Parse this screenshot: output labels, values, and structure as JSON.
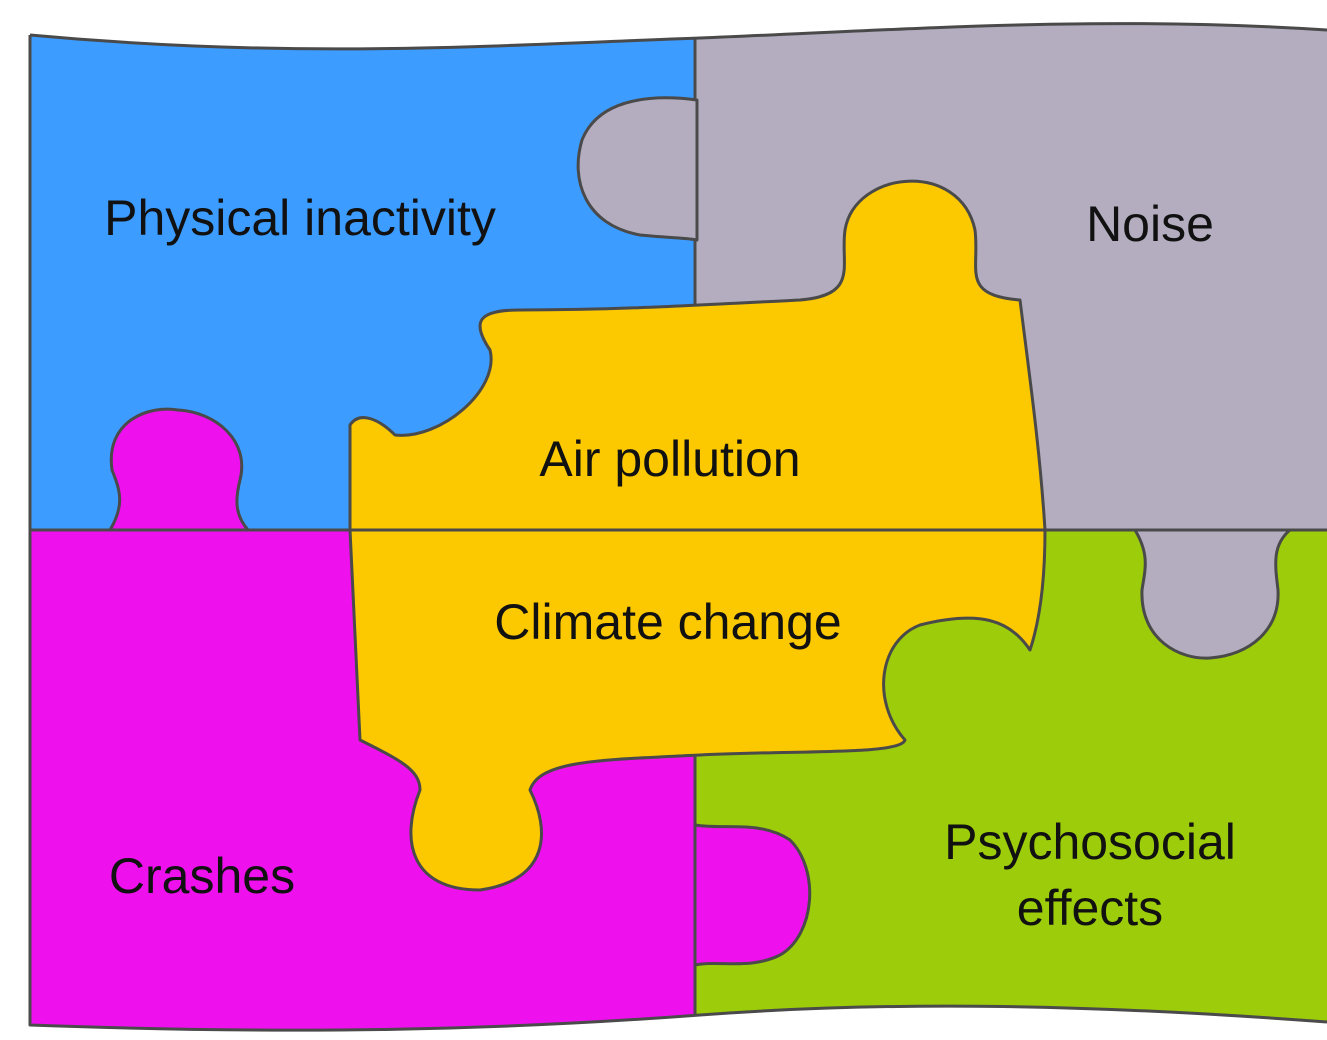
{
  "pieces": [
    {
      "label": "Physical inactivity"
    },
    {
      "label": "Noise"
    },
    {
      "label": "Air pollution"
    },
    {
      "label": "Climate change"
    },
    {
      "label": "Crashes"
    },
    {
      "label_lines": [
        "Psychosocial",
        "effects"
      ]
    }
  ]
}
